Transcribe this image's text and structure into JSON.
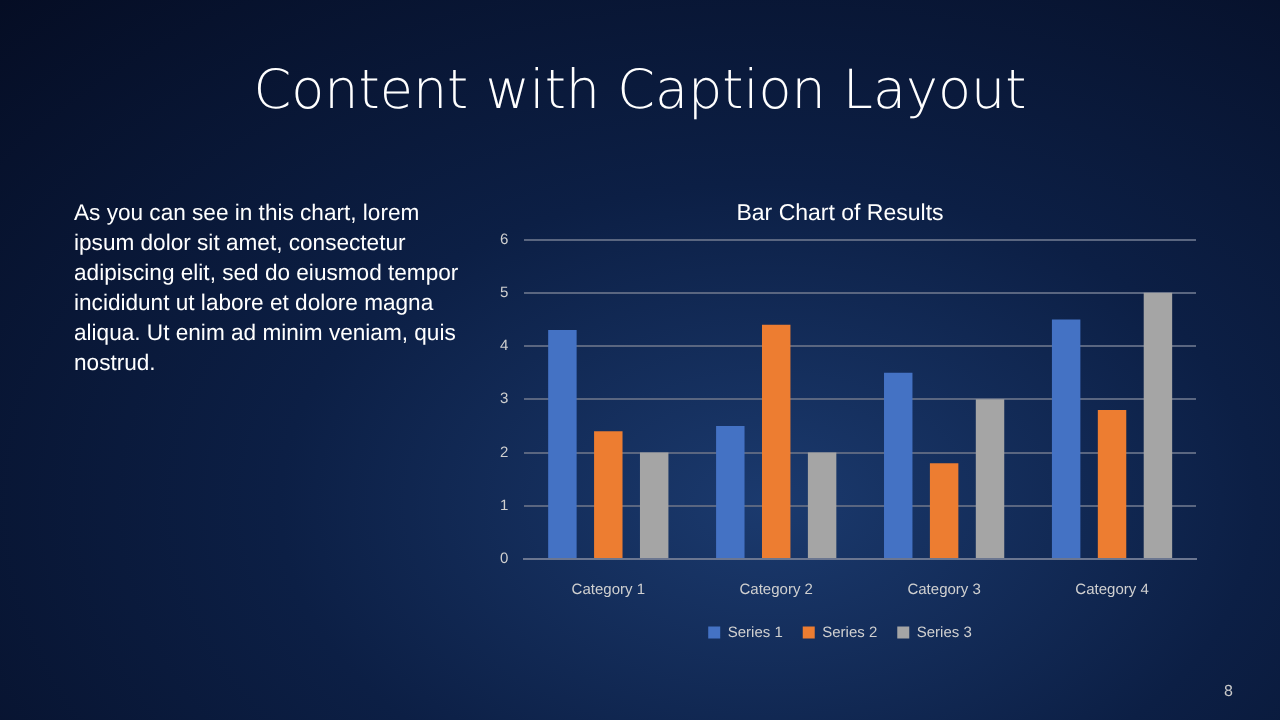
{
  "chart_data": {
    "type": "bar",
    "title": "Content with Caption Layout",
    "subtitle": "Bar Chart of Results",
    "annotations": [
      "As you can see in this chart, lorem ipsum dolor sit amet, consectetur adipiscing elit, sed do eiusmod tempor incididunt ut labore et dolore magna aliqua. Ut enim ad minim veniam, quis nostrud.",
      "8"
    ],
    "categories": [
      "Category 1",
      "Category 2",
      "Category 3",
      "Category 4"
    ],
    "series": [
      {
        "name": "Series 1",
        "color": "#4472c4",
        "values": [
          4.3,
          2.5,
          3.5,
          4.5
        ]
      },
      {
        "name": "Series 2",
        "color": "#ed7d31",
        "values": [
          2.4,
          4.4,
          1.8,
          2.8
        ]
      },
      {
        "name": "Series 3",
        "color": "#a5a5a5",
        "values": [
          2,
          2,
          3,
          5
        ]
      }
    ],
    "ylim": [
      0,
      6
    ],
    "yticks": [
      0,
      1,
      2,
      3,
      4,
      5,
      6
    ],
    "grid": "y",
    "legend": "bottom"
  }
}
